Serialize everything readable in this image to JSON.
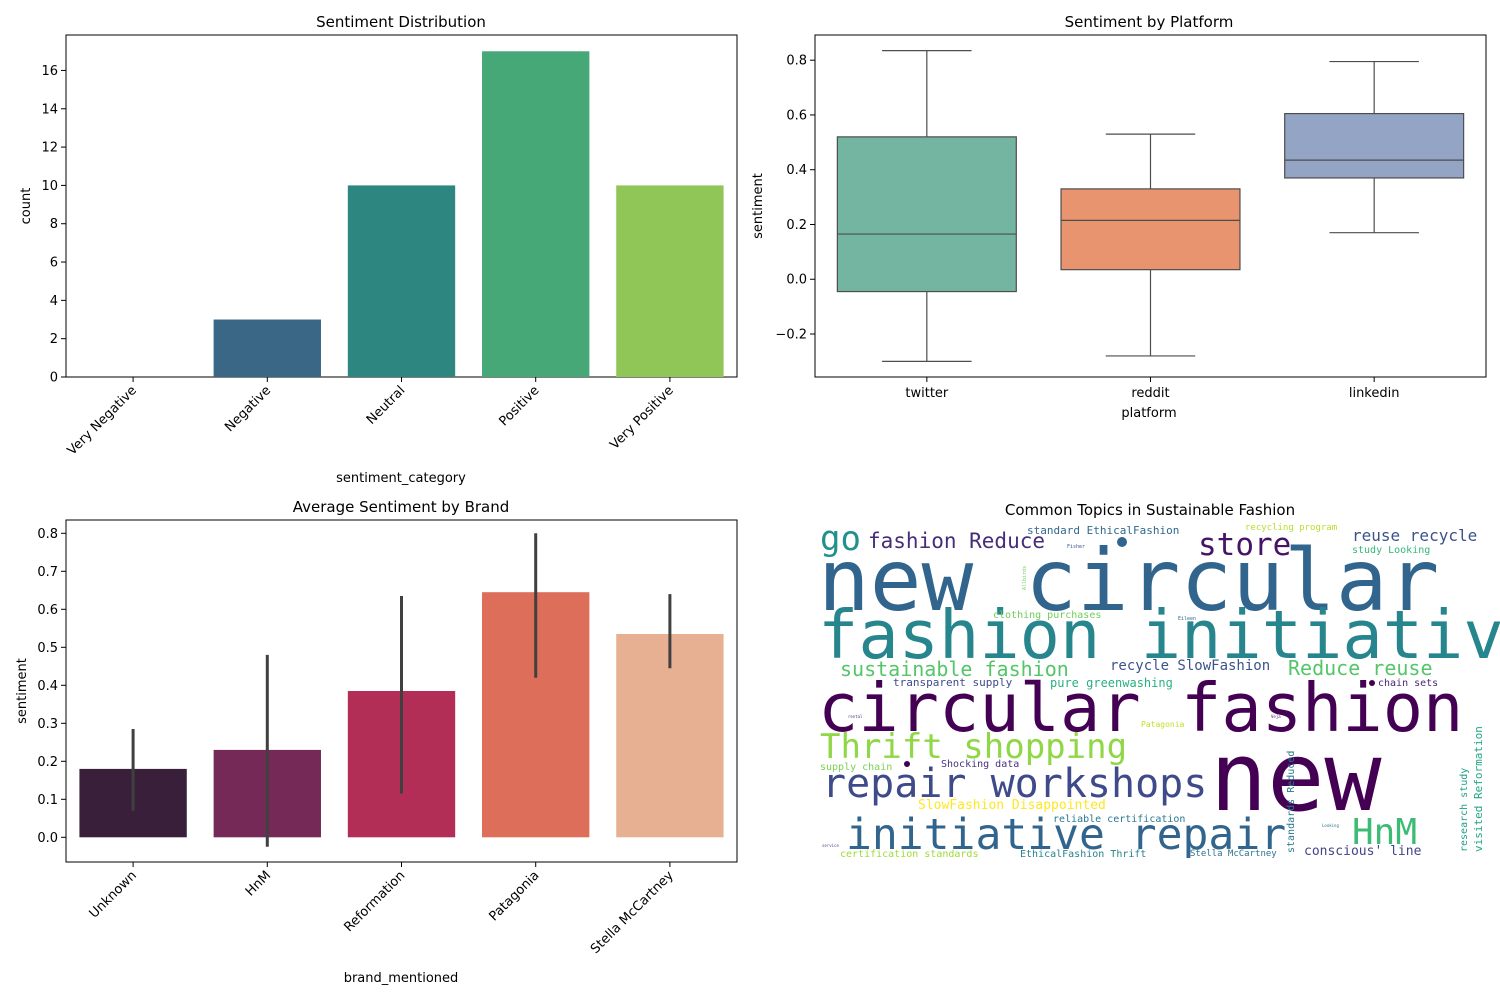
{
  "chart_data": [
    {
      "type": "bar",
      "title": "Sentiment Distribution",
      "xlabel": "sentiment_category",
      "ylabel": "count",
      "categories": [
        "Very Negative",
        "Negative",
        "Neutral",
        "Positive",
        "Very Positive"
      ],
      "values": [
        0,
        3,
        10,
        17,
        10
      ],
      "colors": [
        "#440154",
        "#3b6787",
        "#2d8680",
        "#47a877",
        "#8fc657"
      ],
      "ylim": [
        0,
        17.85
      ],
      "yticks": [
        0,
        2,
        4,
        6,
        8,
        10,
        12,
        14,
        16
      ],
      "grid": false
    },
    {
      "type": "box",
      "title": "Sentiment by Platform",
      "xlabel": "platform",
      "ylabel": "sentiment",
      "categories": [
        "twitter",
        "reddit",
        "linkedin"
      ],
      "boxes": [
        {
          "category": "twitter",
          "whisker_low": -0.3,
          "q1": -0.045,
          "median": 0.165,
          "q3": 0.52,
          "whisker_high": 0.835,
          "color": "#73b5a1"
        },
        {
          "category": "reddit",
          "whisker_low": -0.28,
          "q1": 0.035,
          "median": 0.215,
          "q3": 0.33,
          "whisker_high": 0.53,
          "color": "#e8956f"
        },
        {
          "category": "linkedin",
          "whisker_low": 0.17,
          "q1": 0.37,
          "median": 0.435,
          "q3": 0.605,
          "whisker_high": 0.795,
          "color": "#93a4c4"
        }
      ],
      "ylim": [
        -0.357,
        0.892
      ],
      "yticks": [
        -0.2,
        0.0,
        0.2,
        0.4,
        0.6,
        0.8
      ],
      "ytick_labels": [
        "−0.2",
        "0.0",
        "0.2",
        "0.4",
        "0.6",
        "0.8"
      ],
      "grid": false
    },
    {
      "type": "bar",
      "title": "Average Sentiment by Brand",
      "xlabel": "brand_mentioned",
      "ylabel": "sentiment",
      "categories": [
        "Unknown",
        "HnM",
        "Reformation",
        "Patagonia",
        "Stella McCartney"
      ],
      "values": [
        0.18,
        0.23,
        0.385,
        0.645,
        0.535
      ],
      "error_low": [
        0.07,
        -0.025,
        0.115,
        0.42,
        0.445
      ],
      "error_high": [
        0.285,
        0.48,
        0.635,
        0.8,
        0.64
      ],
      "colors": [
        "#3a1f3a",
        "#752957",
        "#b32e56",
        "#dc6e5a",
        "#e8b093"
      ],
      "ylim": [
        -0.065,
        0.835
      ],
      "yticks": [
        0.0,
        0.1,
        0.2,
        0.3,
        0.4,
        0.5,
        0.6,
        0.7,
        0.8
      ],
      "ytick_labels": [
        "0.0",
        "0.1",
        "0.2",
        "0.3",
        "0.4",
        "0.5",
        "0.6",
        "0.7",
        "0.8"
      ],
      "grid": false
    }
  ],
  "wordcloud": {
    "title": "Common Topics in Sustainable Fashion",
    "words": [
      {
        "text": "new circular",
        "color": "#31658d",
        "weight": 90
      },
      {
        "text": "fashion initiative",
        "color": "#27858e",
        "weight": 70
      },
      {
        "text": "circular fashion",
        "color": "#440154",
        "weight": 70
      },
      {
        "text": "new",
        "color": "#440154",
        "weight": 100
      },
      {
        "text": "repair workshops",
        "color": "#3e4a89",
        "weight": 42
      },
      {
        "text": "initiative repair",
        "color": "#31658d",
        "weight": 45
      },
      {
        "text": "Thrift shopping",
        "color": "#8fd744",
        "weight": 36
      },
      {
        "text": "HnM",
        "color": "#3dbb74",
        "weight": 38
      },
      {
        "text": "go",
        "color": "#22908c",
        "weight": 36
      },
      {
        "text": "store",
        "color": "#471365",
        "weight": 33
      },
      {
        "text": "fashion Reduce",
        "color": "#472c7a",
        "weight": 22
      },
      {
        "text": "sustainable fashion",
        "color": "#54c568",
        "weight": 21
      },
      {
        "text": "Reduce reuse",
        "color": "#54c568",
        "weight": 21
      },
      {
        "text": "reuse recycle",
        "color": "#3b528b",
        "weight": 17
      },
      {
        "text": "recycle SlowFashion",
        "color": "#3b528b",
        "weight": 15
      },
      {
        "text": "standard EthicalFashion",
        "color": "#31688e",
        "weight": 12
      },
      {
        "text": "recycling program",
        "color": "#b5de2b",
        "weight": 9
      },
      {
        "text": "study Looking",
        "color": "#35b779",
        "weight": 10
      },
      {
        "text": "clothing purchases",
        "color": "#6ece58",
        "weight": 11
      },
      {
        "text": "transparent supply",
        "color": "#3e4a89",
        "weight": 12
      },
      {
        "text": "pure greenwashing",
        "color": "#2ab07f",
        "weight": 13
      },
      {
        "text": "chain sets",
        "color": "#482475",
        "weight": 11
      },
      {
        "text": "supply chain",
        "color": "#7ad151",
        "weight": 11
      },
      {
        "text": "Shocking data",
        "color": "#46327e",
        "weight": 11
      },
      {
        "text": "SlowFashion Disappointed",
        "color": "#fde725",
        "weight": 14
      },
      {
        "text": "reliable certification",
        "color": "#29788e",
        "weight": 11
      },
      {
        "text": "certification standards",
        "color": "#a0da39",
        "weight": 11
      },
      {
        "text": "EthicalFashion Thrift",
        "color": "#26828e",
        "weight": 11
      },
      {
        "text": "Stella McCartney",
        "color": "#2c728e",
        "weight": 9
      },
      {
        "text": "conscious' line",
        "color": "#414487",
        "weight": 14
      },
      {
        "text": "Patagonia",
        "color": "#c2df23",
        "weight": 8
      },
      {
        "text": "standards Reduced",
        "color": "#2a788e",
        "weight": 10
      },
      {
        "text": "research study",
        "color": "#1f9e89",
        "weight": 10
      },
      {
        "text": "visited Reformation",
        "color": "#22a884",
        "weight": 12
      },
      {
        "text": "Fisher",
        "color": "#3b528b",
        "weight": 5
      },
      {
        "text": "Allbirds",
        "color": "#6ece58",
        "weight": 5
      },
      {
        "text": "Eileen",
        "color": "#31688e",
        "weight": 5
      },
      {
        "text": "rental",
        "color": "#443a83",
        "weight": 4
      },
      {
        "text": "Veja",
        "color": "#481f70",
        "weight": 4
      },
      {
        "text": "Looking",
        "color": "#2c728e",
        "weight": 4
      },
      {
        "text": "service",
        "color": "#3e4a89",
        "weight": 4
      }
    ]
  }
}
